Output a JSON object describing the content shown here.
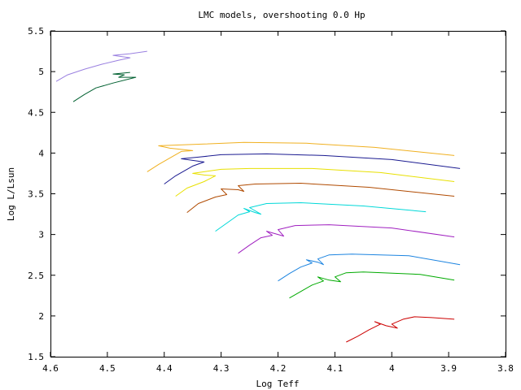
{
  "chart_data": {
    "type": "line",
    "title": "LMC models, overshooting 0.0 Hp",
    "xlabel": "Log Teff",
    "ylabel": "Log L/Lsun",
    "xlim": [
      4.6,
      3.8
    ],
    "ylim": [
      1.5,
      5.5
    ],
    "x_reversed": true,
    "x_ticks": [
      "4.6",
      "4.5",
      "4.4",
      "4.3",
      "4.2",
      "4.1",
      "4",
      "3.9",
      "3.8"
    ],
    "y_ticks": [
      "1.5",
      "2",
      "2.5",
      "3",
      "3.5",
      "4",
      "4.5",
      "5",
      "5.5"
    ],
    "grid": false,
    "legend": "none",
    "series": [
      {
        "color": "#cc0000",
        "points": [
          [
            4.08,
            1.68
          ],
          [
            4.06,
            1.75
          ],
          [
            4.04,
            1.83
          ],
          [
            4.02,
            1.9
          ],
          [
            4.03,
            1.93
          ],
          [
            4.01,
            1.88
          ],
          [
            3.99,
            1.85
          ],
          [
            4.0,
            1.9
          ],
          [
            3.98,
            1.96
          ],
          [
            3.96,
            1.99
          ],
          [
            3.93,
            1.98
          ],
          [
            3.89,
            1.96
          ]
        ]
      },
      {
        "color": "#00aa00",
        "points": [
          [
            4.18,
            2.22
          ],
          [
            4.16,
            2.3
          ],
          [
            4.14,
            2.38
          ],
          [
            4.12,
            2.43
          ],
          [
            4.13,
            2.48
          ],
          [
            4.11,
            2.44
          ],
          [
            4.09,
            2.42
          ],
          [
            4.1,
            2.48
          ],
          [
            4.08,
            2.53
          ],
          [
            4.05,
            2.54
          ],
          [
            3.95,
            2.51
          ],
          [
            3.89,
            2.44
          ]
        ]
      },
      {
        "color": "#1c84e0",
        "points": [
          [
            4.2,
            2.43
          ],
          [
            4.18,
            2.52
          ],
          [
            4.16,
            2.6
          ],
          [
            4.14,
            2.65
          ],
          [
            4.15,
            2.69
          ],
          [
            4.13,
            2.66
          ],
          [
            4.12,
            2.63
          ],
          [
            4.13,
            2.7
          ],
          [
            4.11,
            2.75
          ],
          [
            4.07,
            2.76
          ],
          [
            3.97,
            2.74
          ],
          [
            3.88,
            2.63
          ]
        ]
      },
      {
        "color": "#a020c0",
        "points": [
          [
            4.27,
            2.77
          ],
          [
            4.25,
            2.87
          ],
          [
            4.23,
            2.96
          ],
          [
            4.21,
            2.99
          ],
          [
            4.22,
            3.04
          ],
          [
            4.2,
            3.0
          ],
          [
            4.19,
            2.98
          ],
          [
            4.2,
            3.06
          ],
          [
            4.17,
            3.11
          ],
          [
            4.11,
            3.12
          ],
          [
            4.0,
            3.08
          ],
          [
            3.89,
            2.97
          ]
        ]
      },
      {
        "color": "#00d8d8",
        "points": [
          [
            4.31,
            3.04
          ],
          [
            4.29,
            3.14
          ],
          [
            4.27,
            3.24
          ],
          [
            4.25,
            3.28
          ],
          [
            4.26,
            3.32
          ],
          [
            4.24,
            3.27
          ],
          [
            4.23,
            3.25
          ],
          [
            4.25,
            3.33
          ],
          [
            4.22,
            3.38
          ],
          [
            4.16,
            3.39
          ],
          [
            4.05,
            3.35
          ],
          [
            3.94,
            3.28
          ]
        ]
      },
      {
        "color": "#b04a00",
        "points": [
          [
            4.36,
            3.27
          ],
          [
            4.34,
            3.38
          ],
          [
            4.31,
            3.46
          ],
          [
            4.29,
            3.49
          ],
          [
            4.3,
            3.56
          ],
          [
            4.27,
            3.55
          ],
          [
            4.26,
            3.53
          ],
          [
            4.27,
            3.6
          ],
          [
            4.24,
            3.62
          ],
          [
            4.16,
            3.63
          ],
          [
            4.04,
            3.58
          ],
          [
            3.89,
            3.47
          ]
        ]
      },
      {
        "color": "#e8e000",
        "points": [
          [
            4.38,
            3.47
          ],
          [
            4.36,
            3.57
          ],
          [
            4.33,
            3.65
          ],
          [
            4.31,
            3.72
          ],
          [
            4.33,
            3.73
          ],
          [
            4.35,
            3.75
          ],
          [
            4.33,
            3.77
          ],
          [
            4.3,
            3.8
          ],
          [
            4.25,
            3.81
          ],
          [
            4.14,
            3.81
          ],
          [
            4.02,
            3.76
          ],
          [
            3.89,
            3.65
          ]
        ]
      },
      {
        "color": "#1a1a90",
        "points": [
          [
            4.4,
            3.62
          ],
          [
            4.38,
            3.72
          ],
          [
            4.35,
            3.84
          ],
          [
            4.33,
            3.89
          ],
          [
            4.35,
            3.91
          ],
          [
            4.37,
            3.93
          ],
          [
            4.34,
            3.95
          ],
          [
            4.3,
            3.98
          ],
          [
            4.22,
            3.99
          ],
          [
            4.12,
            3.97
          ],
          [
            4.0,
            3.92
          ],
          [
            3.88,
            3.81
          ]
        ]
      },
      {
        "color": "#f0b020",
        "points": [
          [
            4.43,
            3.77
          ],
          [
            4.41,
            3.86
          ],
          [
            4.39,
            3.94
          ],
          [
            4.37,
            4.02
          ],
          [
            4.35,
            4.03
          ],
          [
            4.39,
            4.06
          ],
          [
            4.41,
            4.09
          ],
          [
            4.33,
            4.11
          ],
          [
            4.26,
            4.13
          ],
          [
            4.15,
            4.12
          ],
          [
            4.03,
            4.07
          ],
          [
            3.89,
            3.97
          ]
        ]
      },
      {
        "color": "#006030",
        "points": [
          [
            4.56,
            4.63
          ],
          [
            4.54,
            4.72
          ],
          [
            4.52,
            4.8
          ],
          [
            4.49,
            4.86
          ],
          [
            4.45,
            4.93
          ],
          [
            4.48,
            4.93
          ],
          [
            4.47,
            4.96
          ],
          [
            4.49,
            4.97
          ],
          [
            4.46,
            4.99
          ]
        ]
      },
      {
        "color": "#9a80e0",
        "points": [
          [
            4.59,
            4.88
          ],
          [
            4.57,
            4.96
          ],
          [
            4.54,
            5.03
          ],
          [
            4.51,
            5.09
          ],
          [
            4.48,
            5.14
          ],
          [
            4.46,
            5.17
          ],
          [
            4.49,
            5.2
          ],
          [
            4.46,
            5.22
          ],
          [
            4.43,
            5.25
          ]
        ]
      }
    ]
  }
}
